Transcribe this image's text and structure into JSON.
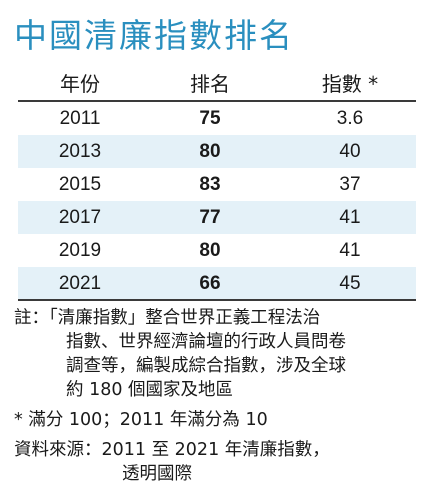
{
  "chart_data": {
    "type": "table",
    "title": "中國清廉指數排名",
    "columns": [
      "年份",
      "排名",
      "指數 *"
    ],
    "rows": [
      {
        "year": "2011",
        "rank": "75",
        "index": "3.6"
      },
      {
        "year": "2013",
        "rank": "80",
        "index": "40"
      },
      {
        "year": "2015",
        "rank": "83",
        "index": "37"
      },
      {
        "year": "2017",
        "rank": "77",
        "index": "41"
      },
      {
        "year": "2019",
        "rank": "80",
        "index": "41"
      },
      {
        "year": "2021",
        "rank": "66",
        "index": "45"
      }
    ],
    "shaded_rows": [
      1,
      3,
      5
    ],
    "accent_color": "#2a8fbf",
    "shade_color": "#e4f1f8"
  },
  "notes": {
    "note_lines": [
      "註：「清廉指數」整合世界正義工程法治",
      "指數、世界經濟論壇的行政人員問卷",
      "調查等，編製成綜合指數，涉及全球",
      "約 180 個國家及地區"
    ],
    "footnote": "* 滿分 100；2011 年滿分為 10",
    "source_lines": [
      "資料來源：2011 至 2021 年清廉指數，",
      "透明國際"
    ]
  }
}
